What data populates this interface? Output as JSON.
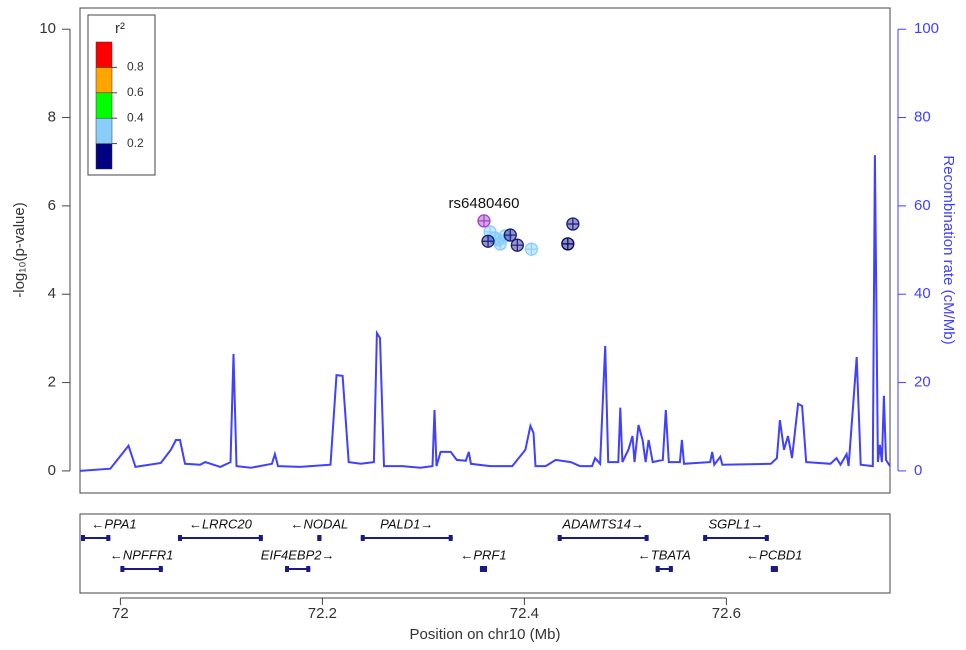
{
  "chart_data": {
    "type": "scatter",
    "ylabel": "-log₁₀(p-value)",
    "y2label": "Recombination rate (cM/Mb)",
    "xlabel": "Position on chr10 (Mb)",
    "xlim": [
      71.96,
      72.762
    ],
    "xticks": [
      72,
      72.2,
      72.4,
      72.6
    ],
    "ylim": [
      -0.5,
      10.48
    ],
    "yticks": [
      0,
      2,
      4,
      6,
      8,
      10
    ],
    "y2lim": [
      -5,
      104.8
    ],
    "y2ticks": [
      0,
      20,
      40,
      60,
      80,
      100
    ],
    "annotation": {
      "text": "rs6480460",
      "point": 0
    },
    "series": [
      {
        "type": "scatter",
        "x": [
          72.36,
          72.364,
          72.386,
          72.393,
          72.448,
          72.443,
          72.366,
          72.371,
          72.376,
          72.381,
          72.374,
          72.407
        ],
        "values": [
          5.66,
          5.2,
          5.34,
          5.11,
          5.59,
          5.14,
          5.41,
          5.27,
          5.14,
          5.32,
          5.23,
          5.02
        ],
        "colors": [
          "#a040c8",
          "#1a1a80",
          "#1a1a80",
          "#1a1a80",
          "#1a1a80",
          "#000066",
          "#87cefa",
          "#87cefa",
          "#87cefa",
          "#87cefa",
          "#87cefa",
          "#87cefa"
        ]
      },
      {
        "type": "line",
        "axis": "y2",
        "color": "#4040ff",
        "x": [
          71.96,
          71.99,
          72.008,
          72.015,
          72.04,
          72.05,
          72.055,
          72.059,
          72.064,
          72.079,
          72.084,
          72.099,
          72.109,
          72.112,
          72.115,
          72.129,
          72.15,
          72.153,
          72.156,
          72.178,
          72.208,
          72.214,
          72.22,
          72.226,
          72.238,
          72.251,
          72.254,
          72.257,
          72.261,
          72.279,
          72.297,
          72.309,
          72.311,
          72.313,
          72.317,
          72.327,
          72.333,
          72.342,
          72.345,
          72.347,
          72.366,
          72.388,
          72.401,
          72.406,
          72.409,
          72.411,
          72.421,
          72.431,
          72.446,
          72.455,
          72.467,
          72.47,
          72.475,
          72.48,
          72.483,
          72.493,
          72.495,
          72.497,
          72.503,
          72.507,
          72.509,
          72.513,
          72.517,
          72.52,
          72.523,
          72.527,
          72.537,
          72.54,
          72.543,
          72.554,
          72.556,
          72.558,
          72.584,
          72.586,
          72.588,
          72.594,
          72.596,
          72.644,
          72.65,
          72.653,
          72.657,
          72.661,
          72.665,
          72.671,
          72.675,
          72.679,
          72.703,
          72.709,
          72.713,
          72.719,
          72.721,
          72.729,
          72.733,
          72.745,
          72.747,
          72.75,
          72.752,
          72.754,
          72.756,
          72.758,
          72.762
        ],
        "values": [
          0,
          0.5,
          5.7,
          0.9,
          1.8,
          4.8,
          7.0,
          7.0,
          1.6,
          1.4,
          2.0,
          0.9,
          2.0,
          26.5,
          1.1,
          0.7,
          1.6,
          3.8,
          1.1,
          0.9,
          1.4,
          21.7,
          21.5,
          2.0,
          1.6,
          2.0,
          31.2,
          30.1,
          1.1,
          1.1,
          0.7,
          1.1,
          13.8,
          1.1,
          4.3,
          4.3,
          2.5,
          2.3,
          4.3,
          1.6,
          1.1,
          1.1,
          4.8,
          10.2,
          8.6,
          1.1,
          1.1,
          2.5,
          2.0,
          1.1,
          1.1,
          2.9,
          1.6,
          28.3,
          2.0,
          2.0,
          14.3,
          2.0,
          4.8,
          7.9,
          2.0,
          10.4,
          7.0,
          2.0,
          7.0,
          2.0,
          2.5,
          13.8,
          2.0,
          2.0,
          7.0,
          1.6,
          2.0,
          4.3,
          1.4,
          3.2,
          1.4,
          1.6,
          2.9,
          11.5,
          4.8,
          7.9,
          2.9,
          15.2,
          14.7,
          2.0,
          1.6,
          2.9,
          1.4,
          3.8,
          1.1,
          25.8,
          1.4,
          1.1,
          71.5,
          2.0,
          5.9,
          2.0,
          17.0,
          2.5,
          1.1
        ]
      }
    ],
    "genes": [
      {
        "label": "←PPA1",
        "start": 71.96,
        "end": 71.99,
        "row": 0
      },
      {
        "label": "←LRRC20",
        "start": 72.057,
        "end": 72.141,
        "row": 0
      },
      {
        "label": "←NODAL",
        "start": 72.195,
        "end": 72.199,
        "row": 0
      },
      {
        "label": "PALD1→",
        "start": 72.238,
        "end": 72.329,
        "row": 0
      },
      {
        "label": "ADAMTS14→",
        "start": 72.433,
        "end": 72.523,
        "row": 0
      },
      {
        "label": "SGPL1→",
        "start": 72.577,
        "end": 72.642,
        "row": 0
      },
      {
        "label": "←NPFFR1",
        "start": 72.0,
        "end": 72.042,
        "row": 1
      },
      {
        "label": "EIF4EBP2→",
        "start": 72.163,
        "end": 72.188,
        "row": 1
      },
      {
        "label": "←PRF1",
        "start": 72.356,
        "end": 72.363,
        "row": 1
      },
      {
        "label": "←TBATA",
        "start": 72.53,
        "end": 72.547,
        "row": 1
      },
      {
        "label": "←PCBD1",
        "start": 72.644,
        "end": 72.651,
        "row": 1
      }
    ],
    "r2_legend": {
      "title": "r²",
      "lim": [
        0,
        1
      ],
      "ticks": [
        0.2,
        0.4,
        0.6,
        0.8
      ],
      "colors": [
        "#000080",
        "#87cefa",
        "#00ff00",
        "#ffa500",
        "#ff0000"
      ]
    }
  }
}
